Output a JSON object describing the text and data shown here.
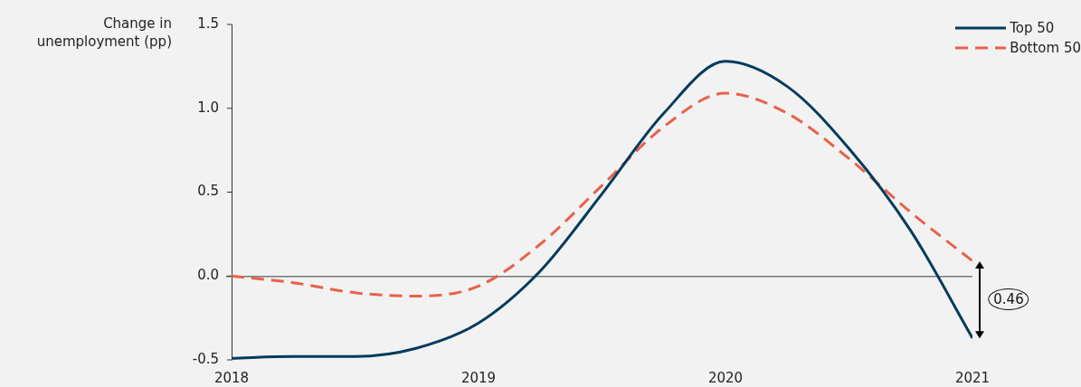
{
  "chart_data": {
    "type": "line",
    "ylabel": "Change in unemployment (pp)",
    "x": [
      2018,
      2018.25,
      2018.5,
      2018.75,
      2019,
      2019.25,
      2019.5,
      2019.75,
      2020,
      2020.25,
      2020.5,
      2020.75,
      2021
    ],
    "xlim": [
      2018,
      2021
    ],
    "xticks": [
      2018,
      2019,
      2020,
      2021
    ],
    "ylim": [
      -0.5,
      1.5
    ],
    "yticks": [
      {
        "value": -0.5,
        "label": "-0.5"
      },
      {
        "value": 0,
        "label": "0.0"
      },
      {
        "value": 0.5,
        "label": "0.5"
      },
      {
        "value": 1,
        "label": "1.0"
      },
      {
        "value": 1.5,
        "label": "1.5"
      }
    ],
    "series": [
      {
        "name": "Top 50",
        "color": "#003b5c",
        "line_style": "solid",
        "values": [
          -0.49,
          -0.48,
          -0.48,
          -0.43,
          -0.28,
          0.03,
          0.49,
          0.97,
          1.28,
          1.13,
          0.76,
          0.27,
          -0.37
        ]
      },
      {
        "name": "Bottom 50",
        "color": "#e8614a",
        "line_style": "dashed",
        "values": [
          0,
          -0.04,
          -0.1,
          -0.12,
          -0.06,
          0.19,
          0.54,
          0.89,
          1.09,
          0.97,
          0.7,
          0.38,
          0.09
        ]
      }
    ],
    "annotations": [
      "0.46"
    ],
    "legend": "top right",
    "marker": "none"
  }
}
